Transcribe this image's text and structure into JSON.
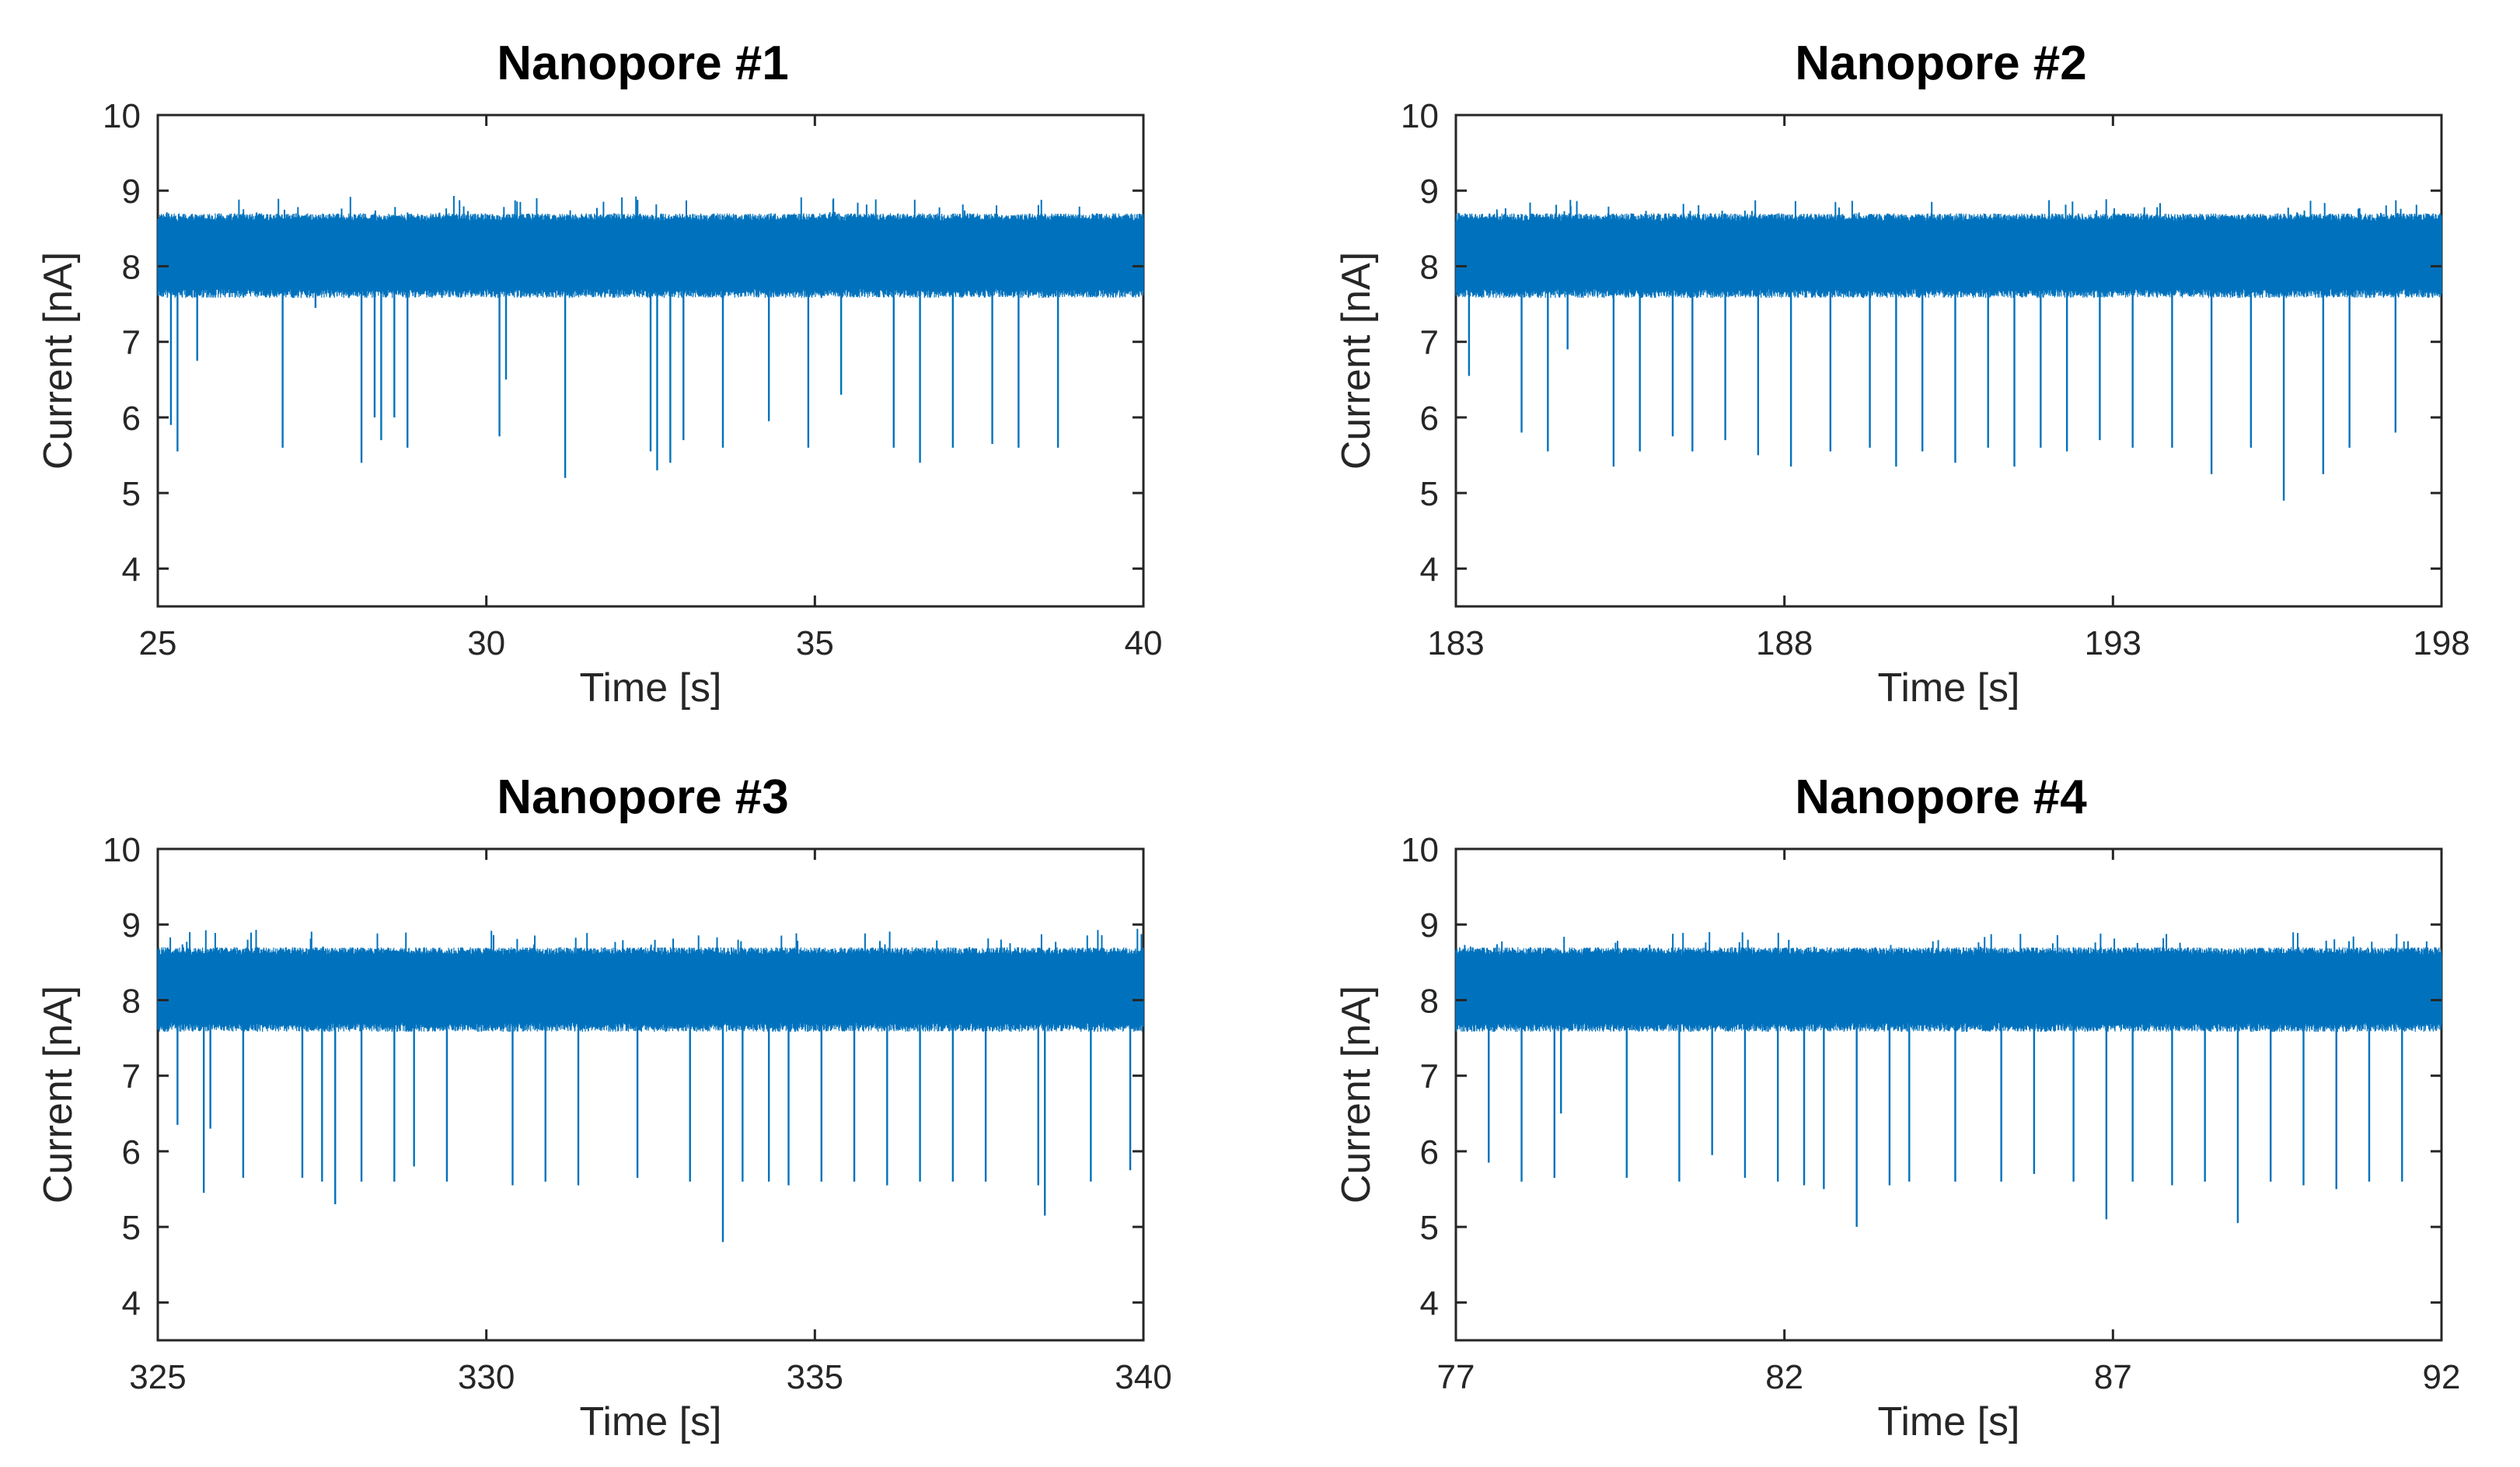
{
  "chart_data": [
    {
      "type": "line",
      "title": "Nanopore #1",
      "xlabel": "Time [s]",
      "ylabel": "Current [nA]",
      "xlim": [
        25,
        40
      ],
      "ylim": [
        3.5,
        10
      ],
      "xticks": [
        25,
        30,
        35,
        40
      ],
      "xtick_labels": [
        "25",
        "30",
        "35",
        "40"
      ],
      "yticks": [
        4,
        5,
        6,
        7,
        8,
        9,
        10
      ],
      "ytick_labels": [
        "4",
        "5",
        "6",
        "7",
        "8",
        "9",
        "10"
      ],
      "baseline": 8.15,
      "baseline_band": [
        7.7,
        8.6
      ],
      "upper_spike_max": 8.95,
      "events": {
        "time": [
          25.2,
          25.3,
          25.6,
          26.9,
          27.4,
          28.1,
          28.3,
          28.4,
          28.6,
          28.8,
          30.2,
          30.3,
          31.2,
          32.5,
          32.6,
          32.8,
          33.0,
          33.6,
          34.3,
          34.9,
          35.4,
          36.2,
          36.6,
          37.1,
          37.7,
          38.1,
          38.7
        ],
        "current": [
          5.9,
          5.55,
          6.75,
          5.6,
          7.45,
          5.4,
          6.0,
          5.7,
          6.0,
          5.6,
          5.75,
          6.5,
          5.2,
          5.55,
          5.3,
          5.4,
          5.7,
          5.6,
          5.95,
          5.6,
          6.3,
          5.6,
          5.4,
          5.6,
          5.65,
          5.6,
          5.6
        ]
      }
    },
    {
      "type": "line",
      "title": "Nanopore #2",
      "xlabel": "Time [s]",
      "ylabel": "Current [nA]",
      "xlim": [
        183,
        198
      ],
      "ylim": [
        3.5,
        10
      ],
      "xticks": [
        183,
        188,
        193,
        198
      ],
      "xtick_labels": [
        "183",
        "188",
        "193",
        "198"
      ],
      "yticks": [
        4,
        5,
        6,
        7,
        8,
        9,
        10
      ],
      "ytick_labels": [
        "4",
        "5",
        "6",
        "7",
        "8",
        "9",
        "10"
      ],
      "baseline": 8.15,
      "baseline_band": [
        7.7,
        8.6
      ],
      "upper_spike_max": 8.9,
      "events": {
        "time": [
          183.2,
          184.0,
          184.4,
          184.7,
          185.4,
          185.8,
          186.3,
          186.6,
          187.1,
          187.6,
          188.1,
          188.7,
          189.3,
          189.7,
          190.1,
          190.6,
          191.1,
          191.5,
          191.9,
          192.3,
          192.8,
          193.3,
          193.9,
          194.5,
          195.1,
          195.6,
          196.2,
          196.6,
          197.3
        ],
        "current": [
          6.55,
          5.8,
          5.55,
          6.9,
          5.35,
          5.55,
          5.75,
          5.55,
          5.7,
          5.5,
          5.35,
          5.55,
          5.6,
          5.35,
          5.55,
          5.4,
          5.6,
          5.35,
          5.6,
          5.55,
          5.7,
          5.6,
          5.6,
          5.25,
          5.6,
          4.9,
          5.25,
          5.6,
          5.8
        ]
      }
    },
    {
      "type": "line",
      "title": "Nanopore #3",
      "xlabel": "Time [s]",
      "ylabel": "Current [nA]",
      "xlim": [
        325,
        340
      ],
      "ylim": [
        3.5,
        10
      ],
      "xticks": [
        325,
        330,
        335,
        340
      ],
      "xtick_labels": [
        "325",
        "330",
        "335",
        "340"
      ],
      "yticks": [
        4,
        5,
        6,
        7,
        8,
        9,
        10
      ],
      "ytick_labels": [
        "4",
        "5",
        "6",
        "7",
        "8",
        "9",
        "10"
      ],
      "baseline": 8.15,
      "baseline_band": [
        7.7,
        8.6
      ],
      "upper_spike_max": 8.95,
      "events": {
        "time": [
          325.3,
          325.7,
          325.8,
          326.3,
          327.2,
          327.5,
          327.7,
          328.1,
          328.6,
          328.9,
          329.4,
          330.4,
          330.9,
          331.4,
          332.3,
          333.1,
          333.6,
          333.9,
          334.3,
          334.6,
          335.1,
          335.6,
          336.1,
          336.6,
          337.1,
          337.6,
          338.4,
          338.5,
          339.2,
          339.8
        ],
        "current": [
          6.35,
          5.45,
          6.3,
          5.65,
          5.65,
          5.6,
          5.3,
          5.6,
          5.6,
          5.8,
          5.6,
          5.55,
          5.6,
          5.55,
          5.65,
          5.6,
          4.8,
          5.6,
          5.6,
          5.55,
          5.6,
          5.6,
          5.55,
          5.6,
          5.6,
          5.6,
          5.55,
          5.15,
          5.6,
          5.75
        ]
      }
    },
    {
      "type": "line",
      "title": "Nanopore #4",
      "xlabel": "Time [s]",
      "ylabel": "Current [nA]",
      "xlim": [
        77,
        92
      ],
      "ylim": [
        3.5,
        10
      ],
      "xticks": [
        77,
        82,
        87,
        92
      ],
      "xtick_labels": [
        "77",
        "82",
        "87",
        "92"
      ],
      "yticks": [
        4,
        5,
        6,
        7,
        8,
        9,
        10
      ],
      "ytick_labels": [
        "4",
        "5",
        "6",
        "7",
        "8",
        "9",
        "10"
      ],
      "baseline": 8.15,
      "baseline_band": [
        7.7,
        8.6
      ],
      "upper_spike_max": 8.9,
      "events": {
        "time": [
          77.5,
          78.0,
          78.5,
          78.6,
          79.6,
          80.4,
          80.9,
          81.4,
          81.9,
          82.3,
          82.6,
          83.1,
          83.6,
          83.9,
          84.6,
          85.3,
          85.8,
          86.4,
          86.9,
          87.3,
          87.9,
          88.4,
          88.9,
          89.4,
          89.9,
          90.4,
          90.9,
          91.4
        ],
        "current": [
          5.85,
          5.6,
          5.65,
          6.5,
          5.65,
          5.6,
          5.95,
          5.65,
          5.6,
          5.55,
          5.5,
          5.0,
          5.55,
          5.6,
          5.6,
          5.6,
          5.7,
          5.6,
          5.1,
          5.6,
          5.55,
          5.6,
          5.05,
          5.6,
          5.55,
          5.5,
          5.6,
          5.6
        ]
      }
    }
  ],
  "colors": {
    "trace": "#0072BD",
    "axis": "#262626",
    "title": "#000000",
    "background": "#ffffff"
  }
}
